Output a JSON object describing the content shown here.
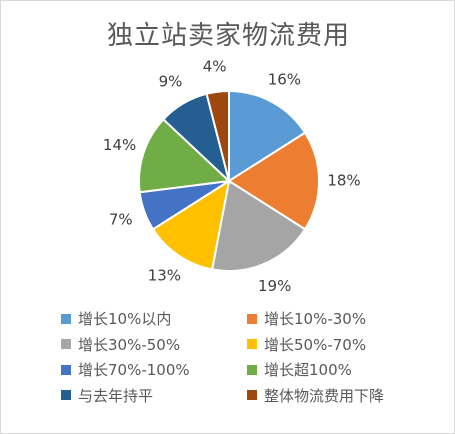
{
  "chart_data": {
    "type": "pie",
    "title": "独立站卖家物流费用",
    "categories": [
      "增长10%以内",
      "增长10%-30%",
      "增长30%-50%",
      "增长50%-70%",
      "增长70%-100%",
      "增长超100%",
      "与去年持平",
      "整体物流费用下降"
    ],
    "values": [
      16,
      18,
      19,
      13,
      7,
      14,
      9,
      4
    ],
    "labels": [
      "16%",
      "18%",
      "19%",
      "13%",
      "7%",
      "14%",
      "9%",
      "4%"
    ],
    "colors": [
      "#5b9bd5",
      "#ed7d31",
      "#a5a5a5",
      "#ffc000",
      "#4472c4",
      "#70ad47",
      "#255e91",
      "#9e480e"
    ],
    "legend_position": "bottom"
  }
}
